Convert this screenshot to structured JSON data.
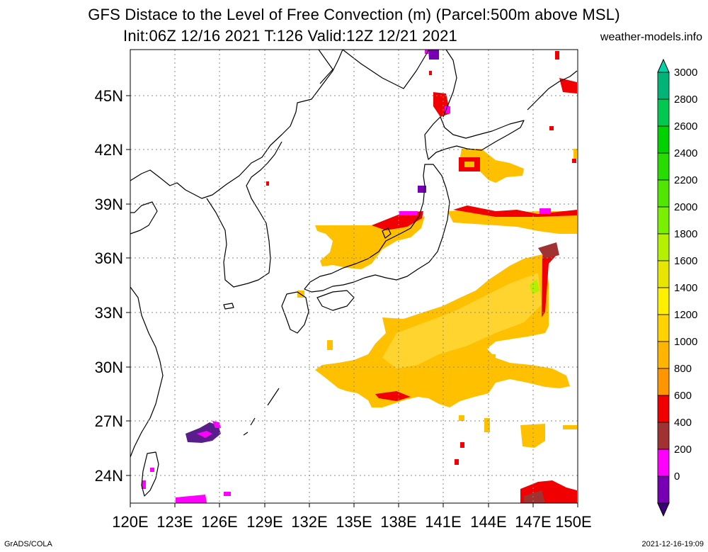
{
  "title_line1": "GFS Distace to the Level of Free Convection (m) (Parcel:500m above MSL)",
  "title_line2": "Init:06Z 12/16 2021 T:126 Valid:12Z 12/21 2021",
  "site": "weather-models.info",
  "footer_left": "GrADS/COLA",
  "footer_right": "2021-12-16-19:09",
  "lat_labels": [
    "45N",
    "42N",
    "39N",
    "36N",
    "33N",
    "30N",
    "27N",
    "24N"
  ],
  "lon_labels": [
    "120E",
    "123E",
    "126E",
    "129E",
    "132E",
    "135E",
    "138E",
    "141E",
    "144E",
    "147E",
    "150E"
  ],
  "colorbar": {
    "labels": [
      "3000",
      "2800",
      "2600",
      "2400",
      "2200",
      "2000",
      "1800",
      "1600",
      "1400",
      "1200",
      "1000",
      "800",
      "600",
      "400",
      "200",
      "0"
    ],
    "colors": [
      "#00d2aa",
      "#00b478",
      "#00c850",
      "#00d200",
      "#28dc00",
      "#50e600",
      "#78f000",
      "#b4f000",
      "#e6e600",
      "#fff000",
      "#ffd200",
      "#ffb400",
      "#ff9600",
      "#f00000",
      "#a03232",
      "#ff00ff",
      "#7800b4",
      "#3c0078"
    ]
  },
  "legend_colors": {
    "purple": "#3c0078",
    "violet": "#7800b4",
    "magenta": "#ff00ff",
    "brown": "#a03232",
    "red": "#f00000",
    "orange": "#ff9600",
    "amber": "#ffb400",
    "gold": "#ffd200",
    "yellow": "#fff000",
    "lime": "#b4f000"
  }
}
